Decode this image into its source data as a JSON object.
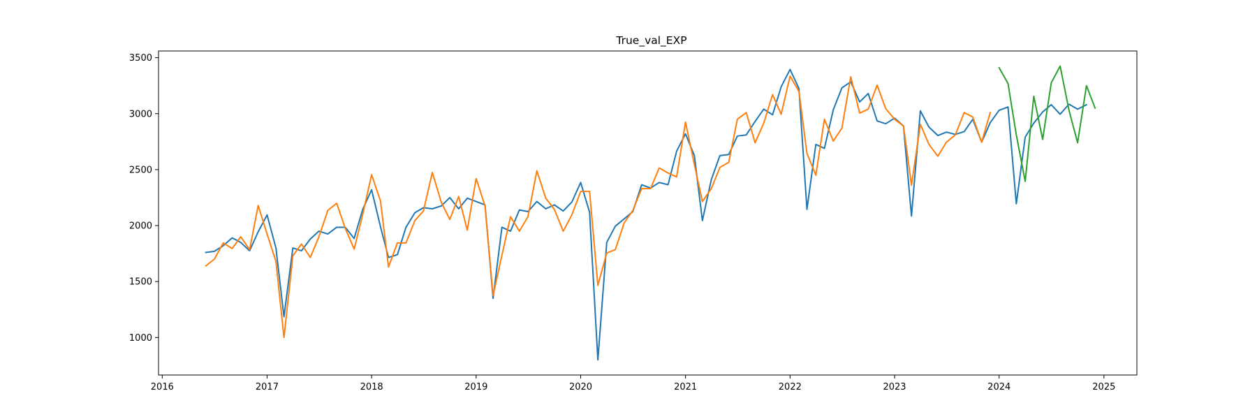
{
  "chart_data": {
    "type": "line",
    "title": "True_val_EXP",
    "xlabel": "",
    "ylabel": "",
    "xlim": [
      "2015-12-19",
      "2025-04-26"
    ],
    "ylim": [
      665,
      3560
    ],
    "x_ticks": [
      "2016",
      "2017",
      "2018",
      "2019",
      "2020",
      "2021",
      "2022",
      "2023",
      "2024",
      "2025"
    ],
    "y_ticks": [
      1000,
      1500,
      2000,
      2500,
      3000,
      3500
    ],
    "grid": false,
    "legend": "none",
    "series": [
      {
        "color": "#1f77b4",
        "x": [
          "2016-06-01",
          "2016-07-01",
          "2016-08-01",
          "2016-09-01",
          "2016-10-01",
          "2016-11-01",
          "2016-12-01",
          "2017-01-01",
          "2017-02-01",
          "2017-03-01",
          "2017-04-01",
          "2017-05-01",
          "2017-06-01",
          "2017-07-01",
          "2017-08-01",
          "2017-09-01",
          "2017-10-01",
          "2017-11-01",
          "2017-12-01",
          "2018-01-01",
          "2018-02-01",
          "2018-03-01",
          "2018-04-01",
          "2018-05-01",
          "2018-06-01",
          "2018-07-01",
          "2018-08-01",
          "2018-09-01",
          "2018-10-01",
          "2018-11-01",
          "2018-12-01",
          "2019-01-01",
          "2019-02-01",
          "2019-03-01",
          "2019-04-01",
          "2019-05-01",
          "2019-06-01",
          "2019-07-01",
          "2019-08-01",
          "2019-09-01",
          "2019-10-01",
          "2019-11-01",
          "2019-12-01",
          "2020-01-01",
          "2020-02-01",
          "2020-03-01",
          "2020-04-01",
          "2020-05-01",
          "2020-06-01",
          "2020-07-01",
          "2020-08-01",
          "2020-09-01",
          "2020-10-01",
          "2020-11-01",
          "2020-12-01",
          "2021-01-01",
          "2021-02-01",
          "2021-03-01",
          "2021-04-01",
          "2021-05-01",
          "2021-06-01",
          "2021-07-01",
          "2021-08-01",
          "2021-09-01",
          "2021-10-01",
          "2021-11-01",
          "2021-12-01",
          "2022-01-01",
          "2022-02-01",
          "2022-03-01",
          "2022-04-01",
          "2022-05-01",
          "2022-06-01",
          "2022-07-01",
          "2022-08-01",
          "2022-09-01",
          "2022-10-01",
          "2022-11-01",
          "2022-12-01",
          "2023-01-01",
          "2023-02-01",
          "2023-03-01",
          "2023-04-01",
          "2023-05-01",
          "2023-06-01",
          "2023-07-01",
          "2023-08-01",
          "2023-09-01",
          "2023-10-01",
          "2023-11-01",
          "2023-12-01",
          "2024-01-01",
          "2024-02-01",
          "2024-03-01",
          "2024-04-01",
          "2024-05-01",
          "2024-06-01",
          "2024-07-01",
          "2024-08-01",
          "2024-09-01",
          "2024-10-01",
          "2024-11-01"
        ],
        "values": [
          1760,
          1770,
          1820,
          1890,
          1850,
          1775,
          1945,
          2095,
          1800,
          1185,
          1800,
          1775,
          1880,
          1950,
          1925,
          1985,
          1985,
          1885,
          2145,
          2320,
          1990,
          1715,
          1740,
          1985,
          2115,
          2160,
          2150,
          2175,
          2250,
          2150,
          2245,
          2215,
          2185,
          1350,
          1985,
          1950,
          2140,
          2125,
          2215,
          2150,
          2185,
          2130,
          2210,
          2385,
          2120,
          800,
          1850,
          1995,
          2060,
          2125,
          2365,
          2335,
          2385,
          2365,
          2665,
          2820,
          2625,
          2045,
          2410,
          2625,
          2635,
          2800,
          2810,
          2930,
          3040,
          2990,
          3240,
          3395,
          3225,
          2145,
          2725,
          2690,
          3035,
          3230,
          3285,
          3105,
          3180,
          2935,
          2910,
          2960,
          2890,
          2085,
          3025,
          2880,
          2805,
          2835,
          2815,
          2840,
          2950,
          2745,
          2920,
          3030,
          3060,
          2195,
          2790,
          2915,
          3015,
          3080,
          2995,
          3085,
          3040,
          3080
        ]
      },
      {
        "color": "#ff7f0e",
        "x": [
          "2016-06-01",
          "2016-07-01",
          "2016-08-01",
          "2016-09-01",
          "2016-10-01",
          "2016-11-01",
          "2016-12-01",
          "2017-01-01",
          "2017-02-01",
          "2017-03-01",
          "2017-04-01",
          "2017-05-01",
          "2017-06-01",
          "2017-07-01",
          "2017-08-01",
          "2017-09-01",
          "2017-10-01",
          "2017-11-01",
          "2017-12-01",
          "2018-01-01",
          "2018-02-01",
          "2018-03-01",
          "2018-04-01",
          "2018-05-01",
          "2018-06-01",
          "2018-07-01",
          "2018-08-01",
          "2018-09-01",
          "2018-10-01",
          "2018-11-01",
          "2018-12-01",
          "2019-01-01",
          "2019-02-01",
          "2019-03-01",
          "2019-04-01",
          "2019-05-01",
          "2019-06-01",
          "2019-07-01",
          "2019-08-01",
          "2019-09-01",
          "2019-10-01",
          "2019-11-01",
          "2019-12-01",
          "2020-01-01",
          "2020-02-01",
          "2020-03-01",
          "2020-04-01",
          "2020-05-01",
          "2020-06-01",
          "2020-07-01",
          "2020-08-01",
          "2020-09-01",
          "2020-10-01",
          "2020-11-01",
          "2020-12-01",
          "2021-01-01",
          "2021-02-01",
          "2021-03-01",
          "2021-04-01",
          "2021-05-01",
          "2021-06-01",
          "2021-07-01",
          "2021-08-01",
          "2021-09-01",
          "2021-10-01",
          "2021-11-01",
          "2021-12-01",
          "2022-01-01",
          "2022-02-01",
          "2022-03-01",
          "2022-04-01",
          "2022-05-01",
          "2022-06-01",
          "2022-07-01",
          "2022-08-01",
          "2022-09-01",
          "2022-10-01",
          "2022-11-01",
          "2022-12-01",
          "2023-01-01",
          "2023-02-01",
          "2023-03-01",
          "2023-04-01",
          "2023-05-01",
          "2023-06-01",
          "2023-07-01",
          "2023-08-01",
          "2023-09-01",
          "2023-10-01",
          "2023-11-01",
          "2023-12-01"
        ],
        "values": [
          1640,
          1700,
          1845,
          1795,
          1900,
          1785,
          2180,
          1925,
          1680,
          1000,
          1730,
          1835,
          1715,
          1900,
          2135,
          2200,
          1975,
          1790,
          2100,
          2455,
          2220,
          1630,
          1845,
          1845,
          2045,
          2130,
          2475,
          2210,
          2055,
          2260,
          1960,
          2420,
          2175,
          1375,
          1735,
          2080,
          1950,
          2080,
          2490,
          2245,
          2145,
          1950,
          2095,
          2305,
          2305,
          1465,
          1755,
          1785,
          2025,
          2135,
          2330,
          2330,
          2515,
          2470,
          2435,
          2925,
          2545,
          2215,
          2330,
          2520,
          2565,
          2950,
          3010,
          2740,
          2915,
          3170,
          2995,
          3335,
          3200,
          2645,
          2450,
          2950,
          2755,
          2870,
          3330,
          3005,
          3040,
          3255,
          3045,
          2950,
          2890,
          2360,
          2905,
          2725,
          2620,
          2745,
          2810,
          3010,
          2970,
          2745,
          3010
        ]
      },
      {
        "color": "#2ca02c",
        "x": [
          "2024-01-01",
          "2024-02-01",
          "2024-03-01",
          "2024-04-01",
          "2024-05-01",
          "2024-06-01",
          "2024-07-01",
          "2024-08-01",
          "2024-09-01",
          "2024-10-01",
          "2024-11-01",
          "2024-12-01"
        ],
        "values": [
          3410,
          3270,
          2810,
          2395,
          3155,
          2770,
          3275,
          3425,
          3030,
          2740,
          3250,
          3050
        ]
      }
    ]
  }
}
